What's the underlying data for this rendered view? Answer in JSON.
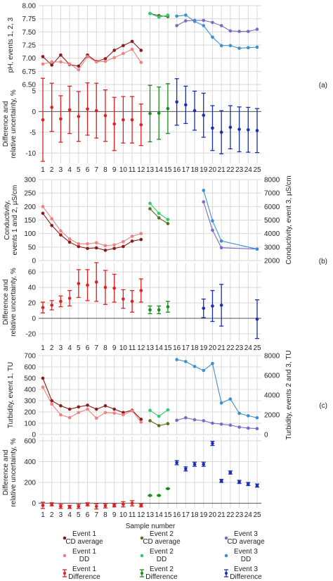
{
  "x_axis_label": "Sample number",
  "panel_tags": [
    "(a)",
    "(b)",
    "(c)"
  ],
  "colors": {
    "ev1_cd": "#8b1a1a",
    "ev1_dd": "#f08080",
    "ev1_diff": "#e02020",
    "ev2_cd": "#5a6e1e",
    "ev2_dd": "#2ecc71",
    "ev2_diff": "#1a8c1a",
    "ev3_cd": "#7b68c8",
    "ev3_dd": "#3b8fd0",
    "ev3_diff": "#1a2fb0"
  },
  "legend": [
    {
      "key": "ev1_cd",
      "line1": "Event 1",
      "line2": "CD average",
      "marker": "dot"
    },
    {
      "key": "ev2_cd",
      "line1": "Event 2",
      "line2": "CD average",
      "marker": "dot"
    },
    {
      "key": "ev3_cd",
      "line1": "Event 3",
      "line2": "CD average",
      "marker": "dot"
    },
    {
      "key": "ev1_dd",
      "line1": "Event 1",
      "line2": "DD",
      "marker": "dot"
    },
    {
      "key": "ev2_dd",
      "line1": "Event 2",
      "line2": "DD",
      "marker": "dot"
    },
    {
      "key": "ev3_dd",
      "line1": "Event 3",
      "line2": "DD",
      "marker": "dot"
    },
    {
      "key": "ev1_diff",
      "line1": "Event 1",
      "line2": "Difference",
      "marker": "errbar"
    },
    {
      "key": "ev2_diff",
      "line1": "Event 2",
      "line2": "Difference",
      "marker": "errbar"
    },
    {
      "key": "ev3_diff",
      "line1": "Event 3",
      "line2": "Difference",
      "marker": "errbar"
    }
  ],
  "chart_data": [
    {
      "id": "ph",
      "type": "line",
      "ylabel": "pH, events 1, 2, 3",
      "ylim": [
        6.5,
        8.0
      ],
      "yticks": [
        "6.50",
        "6.75",
        "7.00",
        "7.25",
        "7.50",
        "7.75",
        "8.00"
      ],
      "show_x_ticks": false,
      "series": [
        {
          "key": "ev1_cd",
          "x": [
            1,
            2,
            3,
            4,
            5,
            6,
            7,
            8,
            9,
            10,
            11,
            12
          ],
          "values": [
            7.03,
            6.87,
            7.06,
            6.88,
            6.85,
            7.06,
            6.94,
            6.99,
            7.15,
            7.24,
            7.32,
            7.15
          ]
        },
        {
          "key": "ev1_dd",
          "x": [
            1,
            2,
            3,
            4,
            5,
            6,
            7,
            8,
            9,
            10,
            11,
            12
          ],
          "values": [
            6.89,
            6.93,
            6.93,
            6.89,
            6.78,
            7.03,
            6.93,
            6.94,
            7.01,
            7.09,
            7.17,
            6.92
          ]
        },
        {
          "key": "ev2_cd",
          "x": [
            13,
            14,
            15
          ],
          "values": [
            7.85,
            7.81,
            7.79
          ]
        },
        {
          "key": "ev2_dd",
          "x": [
            13,
            14,
            15
          ],
          "values": [
            7.85,
            7.78,
            7.82
          ]
        },
        {
          "key": "ev3_cd",
          "x": [
            16,
            17,
            18,
            19,
            20,
            21,
            22,
            23,
            24,
            25
          ],
          "values": [
            7.62,
            7.71,
            7.72,
            7.72,
            7.68,
            7.62,
            7.52,
            7.51,
            7.51,
            7.55
          ]
        },
        {
          "key": "ev3_dd",
          "x": [
            16,
            17,
            18,
            19,
            20,
            21,
            22,
            23,
            24,
            25
          ],
          "values": [
            7.8,
            7.82,
            7.7,
            7.62,
            7.4,
            7.24,
            7.24,
            7.19,
            7.2,
            7.21
          ]
        }
      ]
    },
    {
      "id": "ph_diff",
      "type": "errorbar",
      "ylabel": "Difference and relative uncertainty, %",
      "ylim": [
        -12.5,
        6.5
      ],
      "yticks": [
        "5",
        "0",
        "-5",
        "-10"
      ],
      "ytick_values": [
        5,
        0,
        -5,
        -10
      ],
      "show_x_ticks": true,
      "series": [
        {
          "key": "ev1_diff",
          "x": [
            1,
            2,
            3,
            4,
            5,
            6,
            7,
            8,
            9,
            10,
            11,
            12
          ],
          "values": [
            -2,
            1,
            -1.8,
            0.4,
            -1.2,
            0.6,
            0.2,
            -1,
            -3,
            -2,
            -2,
            -3.2
          ],
          "err": [
            10,
            5.8,
            5.6,
            5.7,
            6,
            6.3,
            6.6,
            6.2,
            6.4,
            5.6,
            5.6,
            5
          ]
        },
        {
          "key": "ev2_diff",
          "x": [
            13,
            14,
            15
          ],
          "values": [
            -0.5,
            -0.4,
            0.7
          ],
          "err": [
            6.8,
            6.3,
            6
          ]
        },
        {
          "key": "ev3_diff",
          "x": [
            16,
            17,
            18,
            19,
            20,
            21,
            22,
            23,
            24,
            25
          ],
          "values": [
            2.3,
            1.6,
            0.2,
            -0.9,
            -4,
            -5,
            -3.8,
            -4.3,
            -4.4,
            -4.6
          ],
          "err": [
            5.6,
            4.5,
            4.7,
            5.3,
            5.4,
            5.2,
            5.2,
            5.4,
            5.4,
            5.3
          ]
        }
      ]
    },
    {
      "id": "conductivity",
      "type": "line",
      "ylabel": "Conductivity, events 1 and 2, µS/cm",
      "ylabel_right": "Conductivity, event 3, µS/cm",
      "ylim": [
        0,
        300
      ],
      "yticks": [
        "0",
        "50",
        "100",
        "150",
        "200",
        "250",
        "300"
      ],
      "ylim_right": [
        2000,
        8000
      ],
      "yticks_right": [
        "2000",
        "3000",
        "4000",
        "5000",
        "6000",
        "7000",
        "8000"
      ],
      "show_x_ticks": false,
      "series": [
        {
          "key": "ev1_cd",
          "x": [
            1,
            2,
            3,
            4,
            5,
            6,
            7,
            8,
            9,
            10,
            11,
            12
          ],
          "values": [
            175,
            130,
            95,
            68,
            52,
            45,
            47,
            38,
            45,
            52,
            72,
            78
          ]
        },
        {
          "key": "ev1_dd",
          "x": [
            1,
            2,
            3,
            4,
            5,
            6,
            7,
            8,
            9,
            10,
            11,
            12
          ],
          "values": [
            200,
            155,
            110,
            80,
            62,
            62,
            66,
            55,
            58,
            70,
            90,
            100
          ]
        },
        {
          "key": "ev2_cd",
          "x": [
            13,
            14,
            15
          ],
          "values": [
            192,
            158,
            137
          ]
        },
        {
          "key": "ev2_dd",
          "x": [
            13,
            14,
            15
          ],
          "values": [
            212,
            175,
            152
          ]
        },
        {
          "key": "ev3_cd",
          "axis": "right",
          "x": [
            19,
            20,
            21,
            25
          ],
          "values": [
            6350,
            4250,
            2950,
            2850
          ]
        },
        {
          "key": "ev3_dd",
          "axis": "right",
          "x": [
            19,
            20,
            21,
            25
          ],
          "values": [
            7200,
            4950,
            3450,
            2850
          ]
        }
      ]
    },
    {
      "id": "conductivity_diff",
      "type": "errorbar",
      "ylabel": "Difference and relative uncertainty, %",
      "ylim": [
        -30,
        72
      ],
      "yticks": [
        "60",
        "40",
        "20",
        "0",
        "-20"
      ],
      "ytick_values": [
        60,
        40,
        20,
        0,
        -20
      ],
      "show_x_ticks": true,
      "series": [
        {
          "key": "ev1_diff",
          "x": [
            1,
            2,
            3,
            4,
            5,
            6,
            7,
            8,
            9,
            10,
            11,
            12
          ],
          "values": [
            14,
            17,
            22,
            26,
            45,
            43,
            47,
            40,
            39,
            25,
            22,
            36
          ],
          "err": [
            7,
            6,
            7,
            10,
            18,
            20,
            25,
            22,
            18,
            12,
            14,
            15
          ]
        },
        {
          "key": "ev2_diff",
          "x": [
            13,
            14,
            15
          ],
          "values": [
            11,
            11,
            15
          ],
          "err": [
            5,
            5,
            7
          ]
        },
        {
          "key": "ev3_diff",
          "x": [
            19,
            20,
            21,
            25
          ],
          "values": [
            13,
            16,
            17,
            -1
          ],
          "err": [
            12,
            20,
            27,
            25
          ]
        }
      ]
    },
    {
      "id": "turbidity",
      "type": "line",
      "ylabel": "Turbidity, event 1, TU",
      "ylabel_right": "Turbidity, events 2 and 3, TU",
      "ylim": [
        0,
        700
      ],
      "yticks": [
        "0",
        "100",
        "200",
        "300",
        "400",
        "500",
        "600",
        "700"
      ],
      "ylim_right": [
        0,
        8000
      ],
      "yticks_right": [
        "0",
        "2000",
        "4000",
        "6000",
        "8000"
      ],
      "show_x_ticks": false,
      "series": [
        {
          "key": "ev1_cd",
          "x": [
            1,
            2,
            3,
            4,
            5,
            6,
            7,
            8,
            9,
            10,
            11,
            12
          ],
          "values": [
            500,
            300,
            255,
            225,
            245,
            260,
            225,
            255,
            225,
            195,
            215,
            135
          ]
        },
        {
          "key": "ev1_dd",
          "x": [
            1,
            2,
            3,
            4,
            5,
            6,
            7,
            8,
            9,
            10,
            11,
            12
          ],
          "values": [
            420,
            270,
            175,
            150,
            195,
            225,
            145,
            195,
            190,
            175,
            210,
            110
          ]
        },
        {
          "key": "ev2_cd",
          "axis": "right",
          "x": [
            13,
            14,
            15
          ],
          "values": [
            1400,
            900,
            1100
          ]
        },
        {
          "key": "ev2_dd",
          "axis": "right",
          "x": [
            13,
            14,
            15
          ],
          "values": [
            2450,
            1850,
            2500
          ]
        },
        {
          "key": "ev3_cd",
          "axis": "right",
          "x": [
            16,
            17,
            18,
            19,
            20,
            21,
            22,
            23,
            24,
            25
          ],
          "values": [
            1450,
            1700,
            1500,
            1400,
            1150,
            1050,
            950,
            750,
            650,
            600
          ]
        },
        {
          "key": "ev3_dd",
          "axis": "right",
          "x": [
            16,
            17,
            18,
            19,
            20,
            21,
            22,
            23,
            24,
            25
          ],
          "values": [
            7600,
            7400,
            6900,
            6500,
            7200,
            3200,
            3600,
            2150,
            1900,
            1700
          ]
        }
      ]
    },
    {
      "id": "turbidity_diff",
      "type": "errorbar",
      "ylabel": "Difference and relative uncertainty, %",
      "ylim": [
        -50,
        640
      ],
      "yticks": [
        "600",
        "400",
        "200",
        "0"
      ],
      "ytick_values": [
        600,
        400,
        200,
        0
      ],
      "show_x_ticks": true,
      "series": [
        {
          "key": "ev1_diff",
          "x": [
            1,
            2,
            3,
            4,
            5,
            6,
            7,
            8,
            9,
            10,
            11,
            12
          ],
          "values": [
            -20,
            -10,
            -30,
            -35,
            -30,
            -10,
            -30,
            -25,
            -20,
            -10,
            0,
            -20
          ],
          "err": [
            30,
            15,
            20,
            15,
            20,
            15,
            25,
            20,
            15,
            25,
            25,
            15
          ]
        },
        {
          "key": "ev2_diff",
          "x": [
            13,
            14,
            15
          ],
          "values": [
            75,
            75,
            140
          ],
          "err": [
            4,
            4,
            4
          ]
        },
        {
          "key": "ev3_diff",
          "x": [
            16,
            17,
            18,
            19,
            20,
            21,
            22,
            23,
            24,
            25
          ],
          "values": [
            390,
            330,
            375,
            375,
            575,
            215,
            295,
            205,
            185,
            170
          ],
          "err": [
            20,
            20,
            20,
            20,
            20,
            15,
            15,
            15,
            15,
            15
          ]
        }
      ]
    }
  ]
}
